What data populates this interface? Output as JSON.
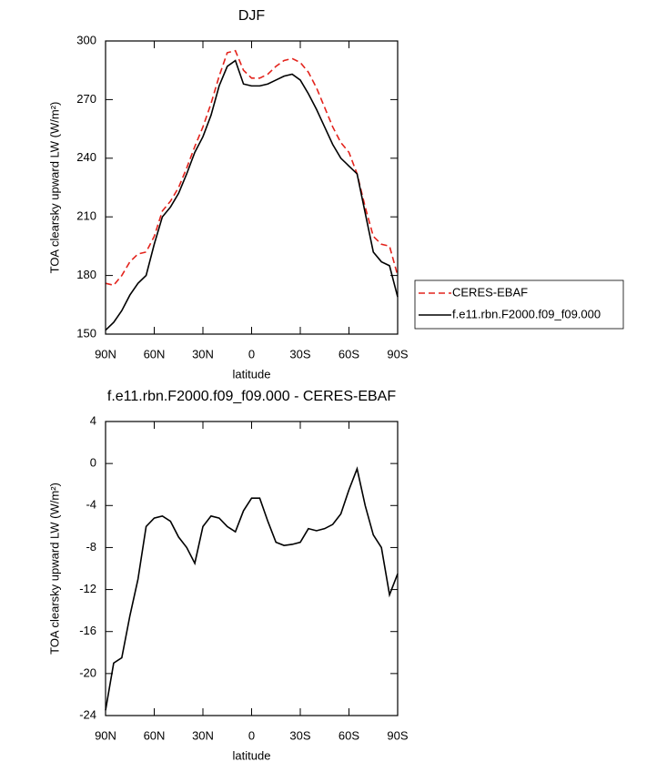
{
  "chart_data": [
    {
      "type": "line",
      "title": "DJF",
      "x_label": "latitude",
      "y_label": "TOA clearsky upward LW (W/m²)",
      "x": [
        90,
        85,
        80,
        75,
        70,
        65,
        60,
        55,
        50,
        45,
        40,
        35,
        30,
        25,
        20,
        15,
        10,
        5,
        0,
        -5,
        -10,
        -15,
        -20,
        -25,
        -30,
        -35,
        -40,
        -45,
        -50,
        -55,
        -60,
        -65,
        -70,
        -75,
        -80,
        -85,
        -90
      ],
      "xlim": [
        90,
        -90
      ],
      "xticks": [
        {
          "value": 90,
          "label": "90N"
        },
        {
          "value": 60,
          "label": "60N"
        },
        {
          "value": 30,
          "label": "30N"
        },
        0,
        {
          "value": -30,
          "label": "30S"
        },
        {
          "value": -60,
          "label": "60S"
        },
        {
          "value": -90,
          "label": "90S"
        }
      ],
      "ylim": [
        150,
        300
      ],
      "yticks": [
        150,
        180,
        210,
        240,
        270,
        300
      ],
      "legend": "right",
      "series": [
        {
          "name": "CERES-EBAF",
          "color": "#e3231c",
          "dash": true,
          "values": [
            176,
            175,
            180,
            187,
            191,
            192,
            200,
            213,
            218,
            225,
            235,
            246,
            256,
            268,
            282,
            294,
            295,
            285,
            281,
            281,
            283,
            287,
            290,
            291,
            289,
            284,
            276,
            266,
            256,
            248,
            243,
            232,
            215,
            200,
            196,
            195,
            180
          ]
        },
        {
          "name": "f.e11.rbn.F2000.f09_f09.000",
          "color": "#000000",
          "dash": false,
          "values": [
            152,
            156,
            162,
            170,
            176,
            180,
            196,
            210,
            215,
            222,
            232,
            243,
            251,
            262,
            277,
            287,
            290,
            278,
            277,
            277,
            278,
            280,
            282,
            283,
            280,
            273,
            265,
            256,
            247,
            240,
            236,
            232,
            212,
            192,
            187,
            185,
            169
          ]
        }
      ]
    },
    {
      "type": "line",
      "title": "f.e11.rbn.F2000.f09_f09.000 - CERES-EBAF",
      "x_label": "latitude",
      "y_label": "TOA clearsky upward LW (W/m²)",
      "x": [
        90,
        85,
        80,
        75,
        70,
        65,
        60,
        55,
        50,
        45,
        40,
        35,
        30,
        25,
        20,
        15,
        10,
        5,
        0,
        -5,
        -10,
        -15,
        -20,
        -25,
        -30,
        -35,
        -40,
        -45,
        -50,
        -55,
        -60,
        -65,
        -70,
        -75,
        -80,
        -85,
        -90
      ],
      "xlim": [
        90,
        -90
      ],
      "xticks": [
        {
          "value": 90,
          "label": "90N"
        },
        {
          "value": 60,
          "label": "60N"
        },
        {
          "value": 30,
          "label": "30N"
        },
        0,
        {
          "value": -30,
          "label": "30S"
        },
        {
          "value": -60,
          "label": "60S"
        },
        {
          "value": -90,
          "label": "90S"
        }
      ],
      "ylim": [
        -24,
        4
      ],
      "yticks": [
        -24,
        -20,
        -16,
        -12,
        -8,
        -4,
        0,
        4
      ],
      "color": "#000000",
      "values": [
        -23.5,
        -19,
        -18.5,
        -14.5,
        -11,
        -6,
        -5.2,
        -5,
        -5.5,
        -7,
        -8,
        -9.5,
        -6,
        -5,
        -5.2,
        -6,
        -6.5,
        -4.5,
        -3.3,
        -3.3,
        -5.5,
        -7.5,
        -7.8,
        -7.7,
        -7.5,
        -6.2,
        -6.4,
        -6.2,
        -5.8,
        -4.8,
        -2.5,
        -0.5,
        -4,
        -6.8,
        -8,
        -12.5,
        -10.5
      ]
    }
  ]
}
